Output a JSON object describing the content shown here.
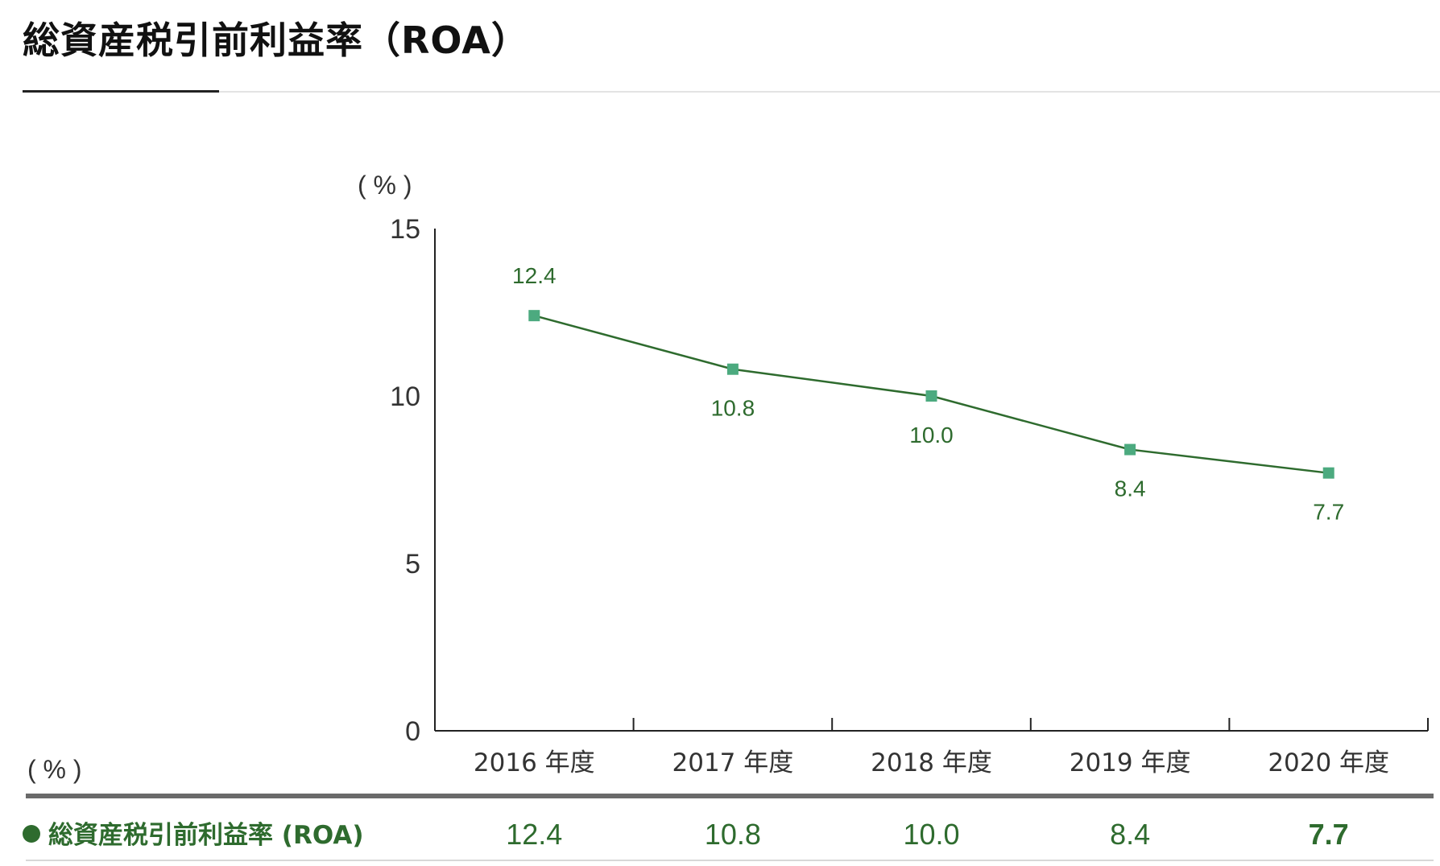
{
  "title": "総資産税引前利益率（ROA）",
  "chart_unit": "( % )",
  "table_unit": "( % )",
  "table_row_label": "総資産税引前利益率 (ROA)",
  "colors": {
    "line": "#2e6b2e",
    "marker": "#4caa7f",
    "axis": "#222222",
    "text_green": "#2e6b2e"
  },
  "chart_data": {
    "type": "line",
    "title": "総資産税引前利益率（ROA）",
    "xlabel": "",
    "ylabel": "( % )",
    "ylim": [
      0,
      15
    ],
    "y_ticks": [
      "0",
      "5",
      "10",
      "15"
    ],
    "categories": [
      "2016 年度",
      "2017 年度",
      "2018 年度",
      "2019 年度",
      "2020 年度"
    ],
    "series": [
      {
        "name": "総資産税引前利益率 (ROA)",
        "values": [
          12.4,
          10.8,
          10.0,
          8.4,
          7.7
        ],
        "labels": [
          "12.4",
          "10.8",
          "10.0",
          "8.4",
          "7.7"
        ]
      }
    ],
    "grid": false,
    "legend": "none"
  },
  "table": {
    "values": [
      "12.4",
      "10.8",
      "10.0",
      "8.4",
      "7.7"
    ]
  }
}
